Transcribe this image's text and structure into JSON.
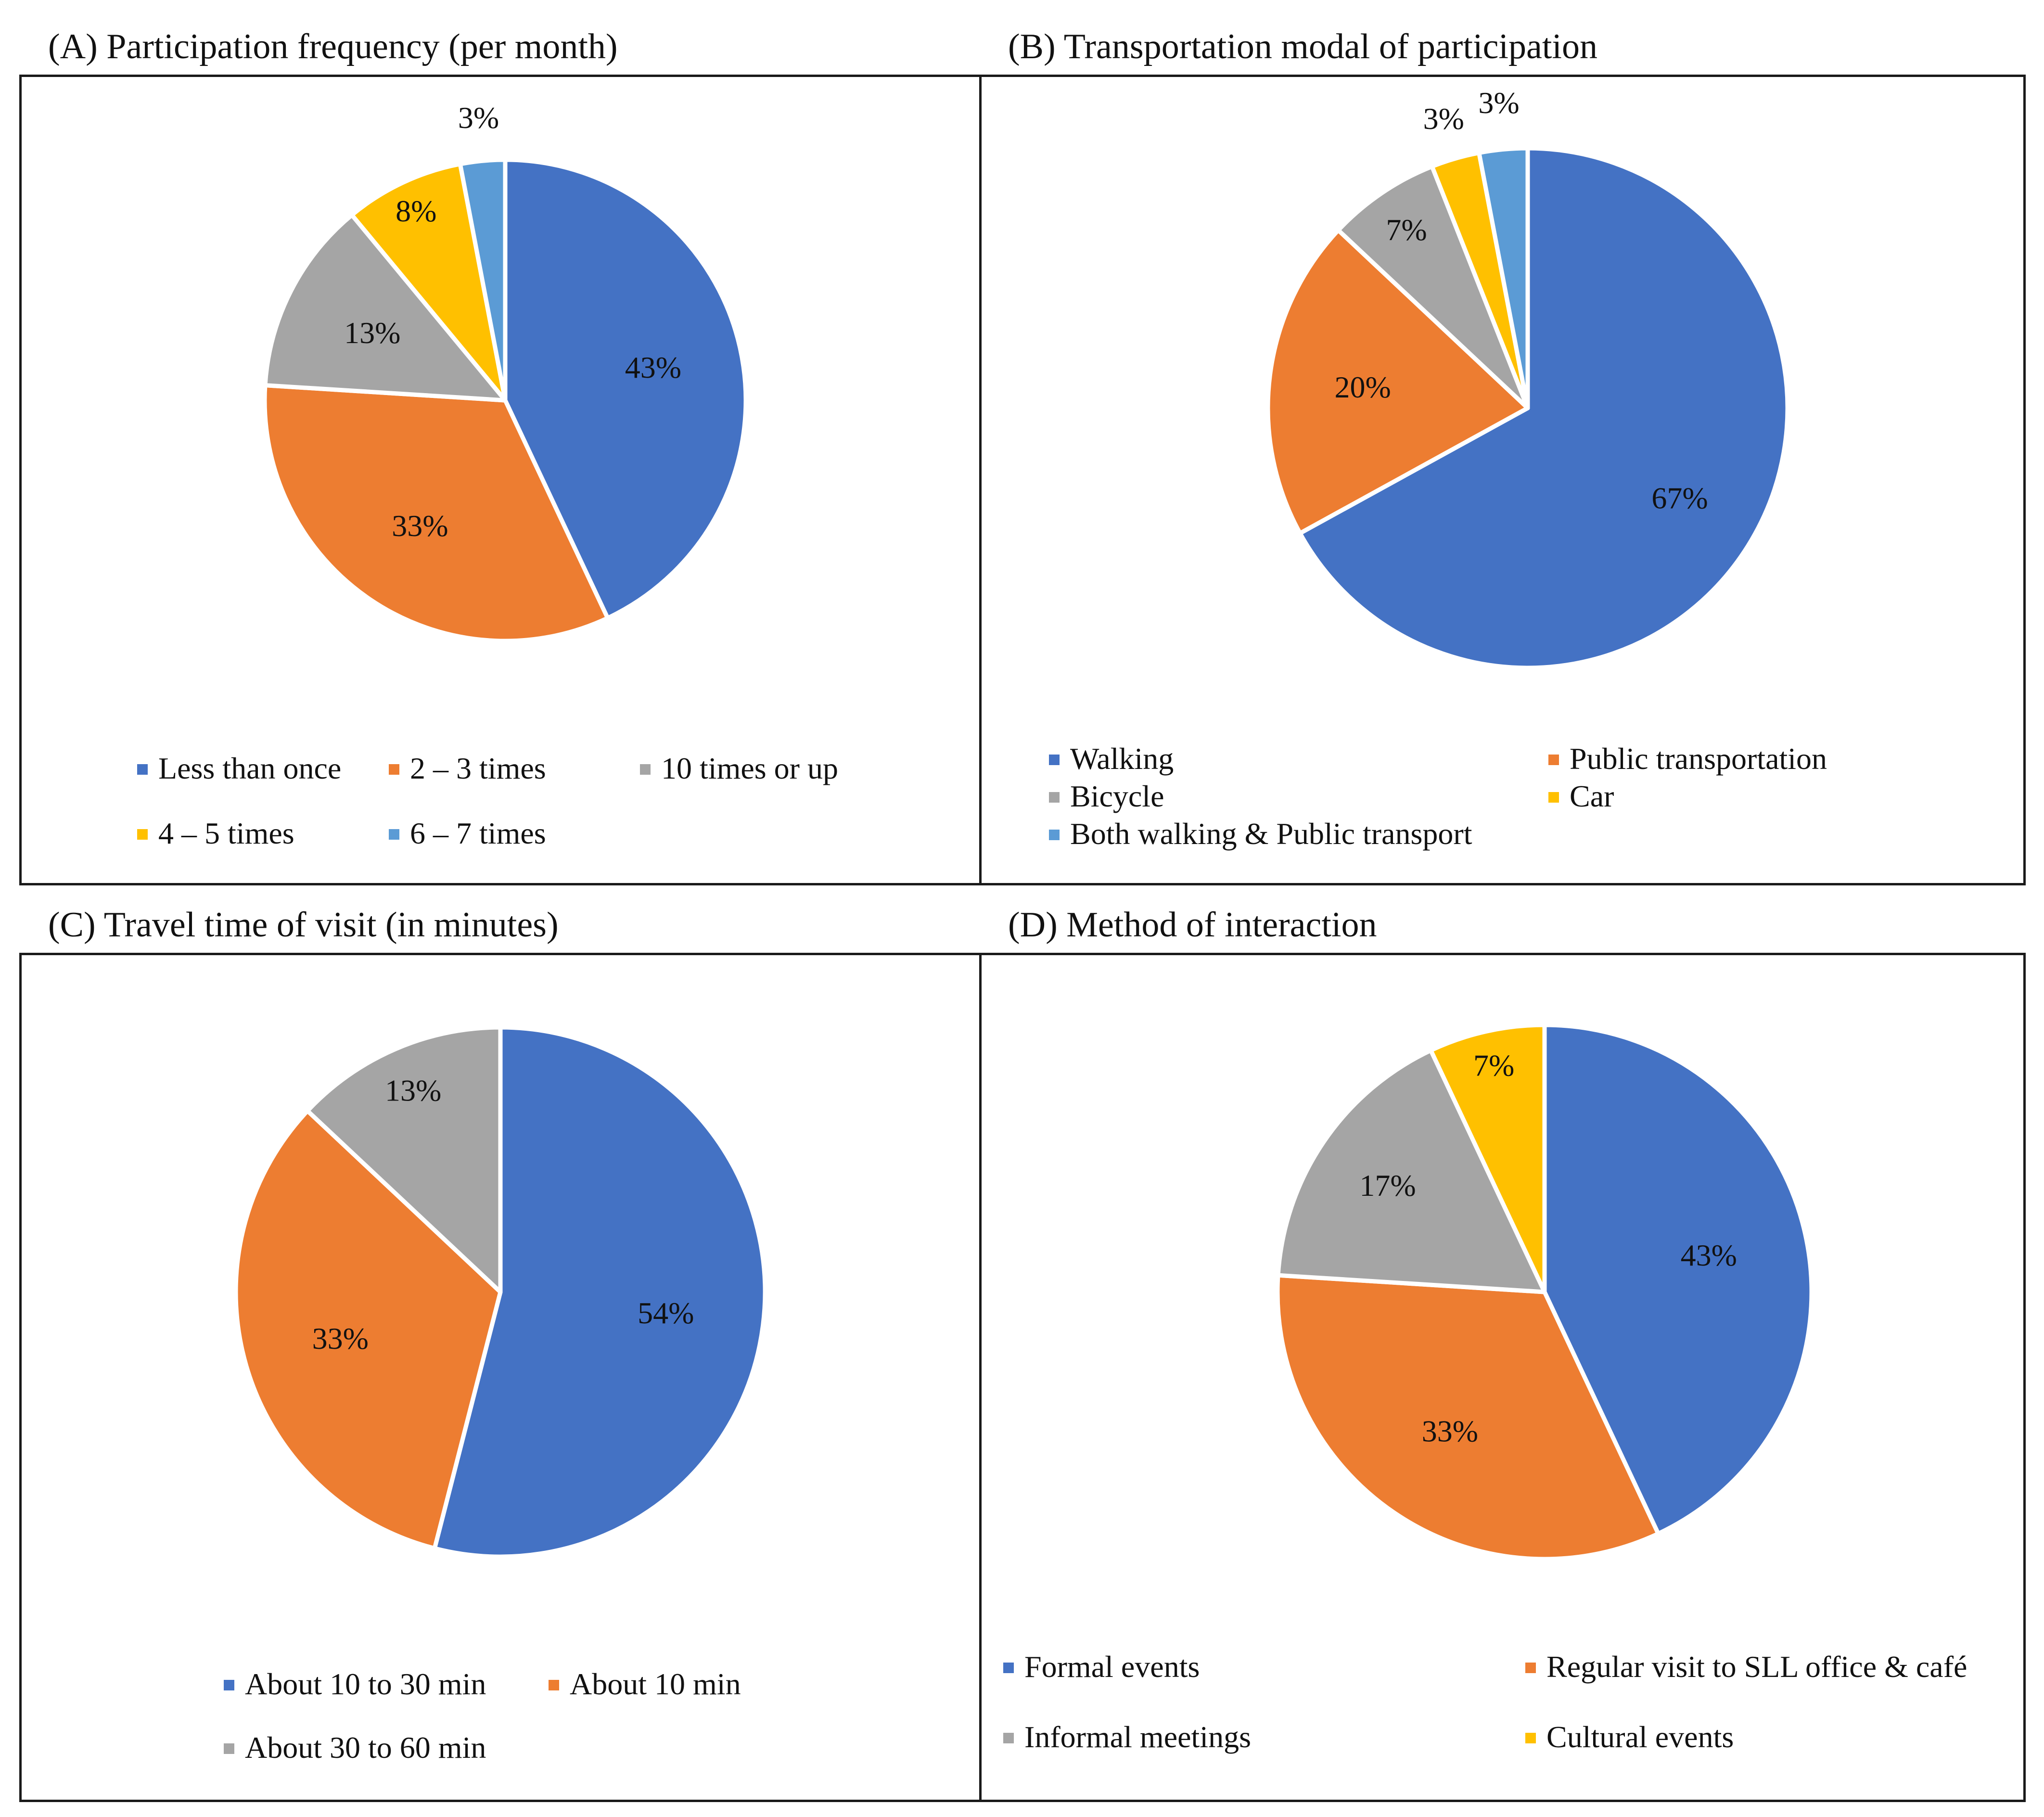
{
  "chart_data": [
    {
      "id": "A",
      "type": "pie",
      "title": "(A) Participation frequency (per month)",
      "categories": [
        "Less than once",
        "2 – 3 times",
        "10 times or up",
        "4 – 5 times",
        "6 – 7 times"
      ],
      "values": [
        43,
        33,
        13,
        8,
        3
      ],
      "labels": [
        "43%",
        "33%",
        "13%",
        "8%",
        "3%"
      ],
      "colors": [
        "#4472C4",
        "#ED7D31",
        "#A5A5A5",
        "#FFC000",
        "#5B9BD5"
      ],
      "legend_position": "bottom"
    },
    {
      "id": "B",
      "type": "pie",
      "title": "(B) Transportation modal of participation",
      "categories": [
        "Walking",
        "Public transportation",
        "Bicycle",
        "Car",
        "Both walking & Public transport"
      ],
      "values": [
        67,
        20,
        7,
        3,
        3
      ],
      "labels": [
        "67%",
        "20%",
        "7%",
        "3%",
        "3%"
      ],
      "colors": [
        "#4472C4",
        "#ED7D31",
        "#A5A5A5",
        "#FFC000",
        "#5B9BD5"
      ],
      "legend_position": "bottom"
    },
    {
      "id": "C",
      "type": "pie",
      "title": "(C) Travel time of visit (in minutes)",
      "categories": [
        "About 10 to 30 min",
        "About 10 min",
        "About 30 to 60 min"
      ],
      "values": [
        54,
        33,
        13
      ],
      "labels": [
        "54%",
        "33%",
        "13%"
      ],
      "colors": [
        "#4472C4",
        "#ED7D31",
        "#A5A5A5"
      ],
      "legend_position": "bottom"
    },
    {
      "id": "D",
      "type": "pie",
      "title": "(D) Method of interaction",
      "categories": [
        "Formal events",
        "Regular visit to SLL office & café",
        "Informal meetings",
        "Cultural events"
      ],
      "values": [
        43,
        33,
        17,
        7
      ],
      "labels": [
        "43%",
        "33%",
        "17%",
        "7%"
      ],
      "colors": [
        "#4472C4",
        "#ED7D31",
        "#A5A5A5",
        "#FFC000"
      ],
      "legend_position": "bottom"
    }
  ]
}
